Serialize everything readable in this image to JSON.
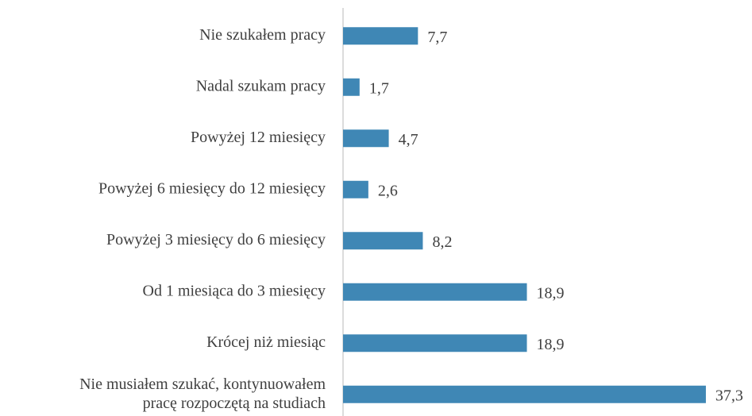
{
  "chart_data": {
    "type": "bar",
    "orientation": "horizontal",
    "categories": [
      "Nie szukałem pracy",
      "Nadal szukam pracy",
      "Powyżej 12 miesięcy",
      "Powyżej 6 miesięcy do 12 miesięcy",
      "Powyżej 3 miesięcy do 6 miesięcy",
      "Od 1 miesiąca do 3 miesięcy",
      "Krócej niż miesiąc",
      "Nie musiałem szukać, kontynuowałem\npracę rozpoczętą na studiach"
    ],
    "values": [
      7.7,
      1.7,
      4.7,
      2.6,
      8.2,
      18.9,
      18.9,
      37.3
    ],
    "value_labels": [
      "7,7",
      "1,7",
      "4,7",
      "2,6",
      "8,2",
      "18,9",
      "18,9",
      "37,3"
    ],
    "color": "#3f87b5",
    "xlim": [
      0,
      40
    ]
  }
}
